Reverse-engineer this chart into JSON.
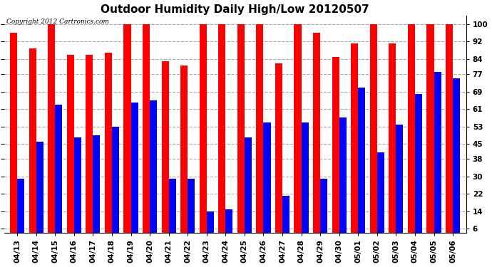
{
  "title": "Outdoor Humidity Daily High/Low 20120507",
  "copyright": "Copyright 2012 Cartronics.com",
  "categories": [
    "04/13",
    "04/14",
    "04/15",
    "04/16",
    "04/17",
    "04/18",
    "04/19",
    "04/20",
    "04/21",
    "04/22",
    "04/23",
    "04/24",
    "04/25",
    "04/26",
    "04/27",
    "04/28",
    "04/29",
    "04/30",
    "05/01",
    "05/02",
    "05/03",
    "05/04",
    "05/05",
    "05/06"
  ],
  "high_values": [
    96,
    89,
    100,
    86,
    86,
    87,
    100,
    100,
    83,
    81,
    100,
    100,
    100,
    100,
    82,
    100,
    96,
    85,
    91,
    100,
    91,
    100,
    100,
    100
  ],
  "low_values": [
    29,
    46,
    63,
    48,
    49,
    53,
    64,
    65,
    29,
    29,
    14,
    15,
    48,
    55,
    21,
    55,
    29,
    57,
    71,
    41,
    54,
    68,
    78,
    75
  ],
  "high_color": "#ff0000",
  "low_color": "#0000ff",
  "bg_color": "#ffffff",
  "grid_color": "#aaaaaa",
  "yticks": [
    6,
    14,
    22,
    30,
    38,
    45,
    53,
    61,
    69,
    77,
    84,
    92,
    100
  ],
  "ylim": [
    4,
    104
  ],
  "bar_width": 0.38,
  "title_fontsize": 11,
  "tick_fontsize": 7.5,
  "copyright_fontsize": 6.5
}
